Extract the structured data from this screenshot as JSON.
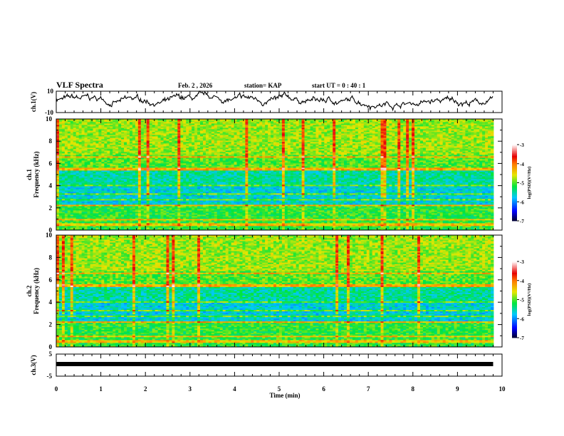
{
  "header": {
    "title": "VLF Spectra",
    "date": "Feb. 2  , 2026",
    "station": "station= KAP",
    "start_time": "start  UT =   0  : 40 : 1"
  },
  "colorbar": {
    "label": "log(PSD)(V²/Hz)",
    "ticks": [
      "-3",
      "-4",
      "-5",
      "-6",
      "-7"
    ],
    "range": [
      -7,
      -3
    ]
  },
  "chart_data": [
    {
      "type": "line",
      "name": "ch1-waveform",
      "ylabel": "ch.1(V)",
      "ylim": [
        -10,
        10
      ],
      "yticks": [
        "10",
        "-10"
      ],
      "xlim": [
        0,
        10
      ]
    },
    {
      "type": "heatmap",
      "name": "ch1-spectrogram",
      "ylabel_top": "ch.1",
      "ylabel": "Frequency  (kHz)",
      "ylim": [
        0,
        10
      ],
      "yticks": [
        "0",
        "2",
        "4",
        "6",
        "8",
        "10"
      ],
      "xlim": [
        0,
        9.8
      ],
      "bands_khz": [
        0.5,
        1.0,
        2.2,
        2.8,
        3.3,
        4.0,
        5.5,
        6.6
      ]
    },
    {
      "type": "heatmap",
      "name": "ch2-spectrogram",
      "ylabel_top": "ch.2",
      "ylabel": "Frequency  (kHz)",
      "ylim": [
        0,
        10
      ],
      "yticks": [
        "0",
        "2",
        "4",
        "6",
        "8",
        "10"
      ],
      "xlim": [
        0,
        9.8
      ],
      "bands_khz": [
        0.5,
        1.0,
        2.2,
        2.8,
        3.3,
        4.0,
        5.5,
        6.6
      ]
    },
    {
      "type": "line",
      "name": "ch3-waveform",
      "ylabel": "ch.3(V)",
      "ylim": [
        -5,
        5
      ],
      "yticks": [
        "5",
        "-5"
      ],
      "x": [
        0,
        9.8
      ],
      "y": [
        0.5,
        0.5
      ],
      "xlabel": "Time  (min)",
      "xticks": [
        "0",
        "1",
        "2",
        "3",
        "4",
        "5",
        "6",
        "7",
        "8",
        "9",
        "10"
      ],
      "xlim": [
        0,
        10
      ]
    }
  ]
}
